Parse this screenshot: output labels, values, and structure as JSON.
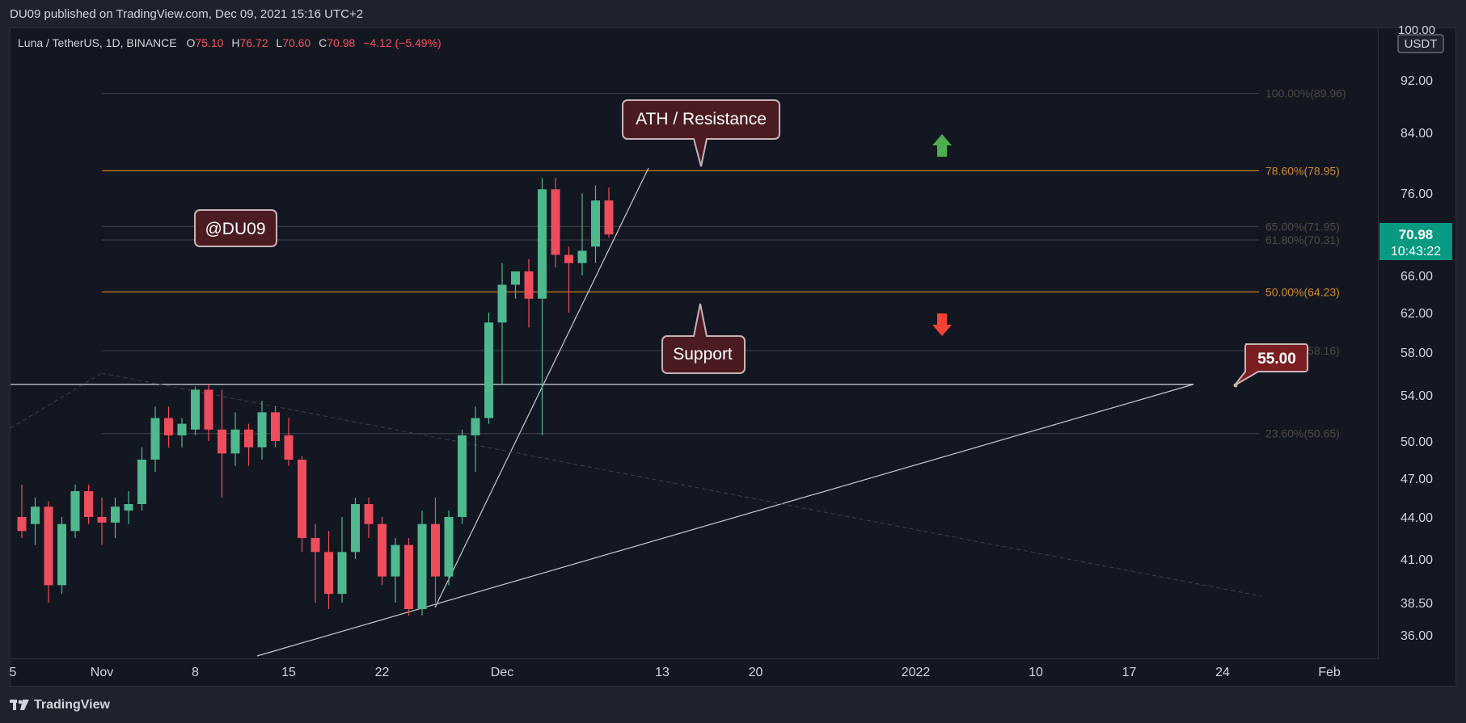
{
  "header": {
    "published_line": "DU09 published on TradingView.com, Dec 09, 2021 15:16 UTC+2",
    "symbol": "Luna / TetherUS, 1D, BINANCE",
    "ohlc": {
      "o_label": "O",
      "o": "75.10",
      "h_label": "H",
      "h": "76.72",
      "l_label": "L",
      "l": "70.60",
      "c_label": "C",
      "c": "70.98",
      "change": "−4.12 (−5.49%)"
    }
  },
  "price_axis": {
    "currency": "USDT",
    "top_partial": "100.00",
    "ticks": [
      "92.00",
      "84.00",
      "76.00",
      "66.00",
      "62.00",
      "58.00",
      "54.00",
      "50.00",
      "47.00",
      "44.00",
      "41.00",
      "38.50",
      "36.00"
    ],
    "last_price": "70.98",
    "countdown": "10:43:22",
    "last_color": "#089981"
  },
  "time_axis": {
    "labels": [
      "5",
      "Nov",
      "8",
      "15",
      "22",
      "Dec",
      "13",
      "20",
      "2022",
      "10",
      "17",
      "24",
      "Feb"
    ]
  },
  "fib_levels": [
    {
      "label": "100.00%(89.96)",
      "price": 89.96,
      "color": "#4a4a4a",
      "visible": "faint"
    },
    {
      "label": "78.60%(78.95)",
      "price": 78.95,
      "color": "#d08a2f",
      "visible": "strong"
    },
    {
      "label": "65.00%(71.95)",
      "price": 71.95,
      "color": "#4a4a4a",
      "visible": "faint"
    },
    {
      "label": "61.80%(70.31)",
      "price": 70.31,
      "color": "#5a5a5a",
      "visible": "faint"
    },
    {
      "label": "50.00%(64.23)",
      "price": 64.23,
      "color": "#d08a2f",
      "visible": "strong"
    },
    {
      "label": "38.20%(58.16)",
      "price": 58.16,
      "color": "#4a4a4a",
      "visible": "faint"
    },
    {
      "label": "23.60%(50.65)",
      "price": 50.65,
      "color": "#5a4a3a",
      "visible": "faint"
    }
  ],
  "annotations": {
    "ath_resistance": "ATH / Resistance",
    "support": "Support",
    "watermark": "@DU09",
    "level_tag": "55.00"
  },
  "colors": {
    "up": "#4fb88f",
    "down": "#ee4d5c",
    "up_arrow": "#4caf50",
    "down_arrow": "#f44336",
    "callout_fill": "#4a1c22",
    "tag_fill": "#7a1e22"
  },
  "chart_data": {
    "type": "candlestick",
    "title": "",
    "series": [
      {
        "values": [
          {
            "date": "2021-10-26",
            "o": 44.0,
            "h": 46.5,
            "l": 42.5,
            "c": 43.0
          },
          {
            "date": "2021-10-27",
            "o": 43.5,
            "h": 45.5,
            "l": 42.0,
            "c": 44.8
          },
          {
            "date": "2021-10-28",
            "o": 44.8,
            "h": 45.2,
            "l": 38.5,
            "c": 39.5
          },
          {
            "date": "2021-10-29",
            "o": 39.5,
            "h": 44.0,
            "l": 39.0,
            "c": 43.5
          },
          {
            "date": "2021-10-30",
            "o": 43.0,
            "h": 46.5,
            "l": 42.5,
            "c": 46.0
          },
          {
            "date": "2021-10-31",
            "o": 46.0,
            "h": 46.5,
            "l": 43.5,
            "c": 44.0
          },
          {
            "date": "2021-11-01",
            "o": 44.0,
            "h": 45.5,
            "l": 42.0,
            "c": 43.6
          },
          {
            "date": "2021-11-02",
            "o": 43.6,
            "h": 45.5,
            "l": 42.5,
            "c": 44.8
          },
          {
            "date": "2021-11-03",
            "o": 44.5,
            "h": 46.0,
            "l": 43.5,
            "c": 45.0
          },
          {
            "date": "2021-11-04",
            "o": 45.0,
            "h": 49.5,
            "l": 44.5,
            "c": 48.5
          },
          {
            "date": "2021-11-05",
            "o": 48.5,
            "h": 53.0,
            "l": 47.5,
            "c": 52.0
          },
          {
            "date": "2021-11-06",
            "o": 52.0,
            "h": 53.0,
            "l": 49.5,
            "c": 50.5
          },
          {
            "date": "2021-11-07",
            "o": 50.5,
            "h": 52.0,
            "l": 49.5,
            "c": 51.5
          },
          {
            "date": "2021-11-08",
            "o": 51.0,
            "h": 54.8,
            "l": 50.5,
            "c": 54.5
          },
          {
            "date": "2021-11-09",
            "o": 54.5,
            "h": 55.0,
            "l": 50.0,
            "c": 51.0
          },
          {
            "date": "2021-11-10",
            "o": 51.0,
            "h": 54.5,
            "l": 45.5,
            "c": 49.0
          },
          {
            "date": "2021-11-11",
            "o": 49.0,
            "h": 52.5,
            "l": 48.0,
            "c": 51.0
          },
          {
            "date": "2021-11-12",
            "o": 51.0,
            "h": 51.5,
            "l": 48.0,
            "c": 49.5
          },
          {
            "date": "2021-11-13",
            "o": 49.5,
            "h": 53.5,
            "l": 48.5,
            "c": 52.5
          },
          {
            "date": "2021-11-14",
            "o": 52.5,
            "h": 53.0,
            "l": 49.5,
            "c": 50.0
          },
          {
            "date": "2021-11-15",
            "o": 50.5,
            "h": 52.0,
            "l": 48.0,
            "c": 48.5
          },
          {
            "date": "2021-11-16",
            "o": 48.5,
            "h": 48.8,
            "l": 41.5,
            "c": 42.5
          },
          {
            "date": "2021-11-17",
            "o": 42.5,
            "h": 43.5,
            "l": 38.5,
            "c": 41.5
          },
          {
            "date": "2021-11-18",
            "o": 41.5,
            "h": 43.0,
            "l": 38.0,
            "c": 39.0
          },
          {
            "date": "2021-11-19",
            "o": 39.0,
            "h": 44.0,
            "l": 38.5,
            "c": 41.5
          },
          {
            "date": "2021-11-20",
            "o": 41.5,
            "h": 45.5,
            "l": 41.0,
            "c": 45.0
          },
          {
            "date": "2021-11-21",
            "o": 45.0,
            "h": 45.5,
            "l": 42.5,
            "c": 43.5
          },
          {
            "date": "2021-11-22",
            "o": 43.5,
            "h": 44.0,
            "l": 39.5,
            "c": 40.0
          },
          {
            "date": "2021-11-23",
            "o": 40.0,
            "h": 42.5,
            "l": 38.5,
            "c": 42.0
          },
          {
            "date": "2021-11-24",
            "o": 42.0,
            "h": 42.5,
            "l": 37.5,
            "c": 38.0
          },
          {
            "date": "2021-11-25",
            "o": 38.0,
            "h": 44.5,
            "l": 37.5,
            "c": 43.5
          },
          {
            "date": "2021-11-26",
            "o": 43.5,
            "h": 45.5,
            "l": 38.5,
            "c": 40.0
          },
          {
            "date": "2021-11-27",
            "o": 40.0,
            "h": 44.5,
            "l": 39.5,
            "c": 44.0
          },
          {
            "date": "2021-11-28",
            "o": 44.0,
            "h": 51.0,
            "l": 43.5,
            "c": 50.5
          },
          {
            "date": "2021-11-29",
            "o": 50.5,
            "h": 53.0,
            "l": 47.5,
            "c": 52.0
          },
          {
            "date": "2021-11-30",
            "o": 52.0,
            "h": 62.0,
            "l": 51.5,
            "c": 61.0
          },
          {
            "date": "2021-12-01",
            "o": 61.0,
            "h": 67.5,
            "l": 55.0,
            "c": 65.0
          },
          {
            "date": "2021-12-02",
            "o": 65.0,
            "h": 66.5,
            "l": 63.5,
            "c": 66.5
          },
          {
            "date": "2021-12-03",
            "o": 66.5,
            "h": 68.0,
            "l": 60.5,
            "c": 63.5
          },
          {
            "date": "2021-12-04",
            "o": 63.5,
            "h": 78.0,
            "l": 50.5,
            "c": 76.5
          },
          {
            "date": "2021-12-05",
            "o": 76.5,
            "h": 78.0,
            "l": 67.0,
            "c": 68.5
          },
          {
            "date": "2021-12-06",
            "o": 68.5,
            "h": 69.5,
            "l": 62.0,
            "c": 67.5
          },
          {
            "date": "2021-12-07",
            "o": 67.5,
            "h": 76.0,
            "l": 66.0,
            "c": 69.0
          },
          {
            "date": "2021-12-08",
            "o": 69.5,
            "h": 77.0,
            "l": 67.5,
            "c": 75.1
          },
          {
            "date": "2021-12-09",
            "o": 75.1,
            "h": 76.72,
            "l": 70.6,
            "c": 70.98
          }
        ]
      }
    ]
  }
}
